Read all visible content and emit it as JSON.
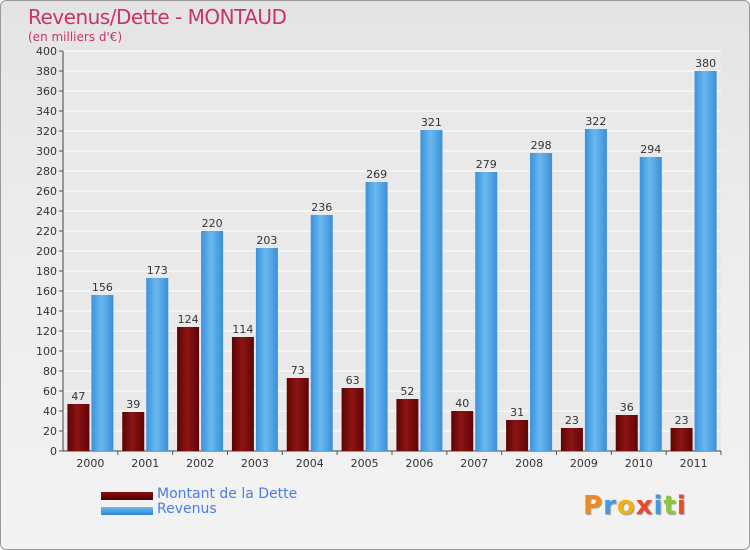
{
  "header": {
    "title": "Revenus/Dette - MONTAUD",
    "subtitle": "(en milliers d'€)"
  },
  "logo": {
    "text": "Proxiti"
  },
  "colors": {
    "dette": "#7a0a0a",
    "revenus": "#4aa3e6",
    "title": "#c8336a",
    "legend_text": "#4a7de6"
  },
  "legend": {
    "items": [
      {
        "label": "Montant de la Dette",
        "color": "#6a0606"
      },
      {
        "label": "Revenus",
        "color": "#3f9be3"
      }
    ]
  },
  "chart_data": {
    "type": "bar",
    "title": "Revenus/Dette - MONTAUD",
    "ylabel": "(en milliers d'€)",
    "xlabel": "",
    "categories": [
      "2000",
      "2001",
      "2002",
      "2003",
      "2004",
      "2005",
      "2006",
      "2007",
      "2008",
      "2009",
      "2010",
      "2011"
    ],
    "series": [
      {
        "name": "Montant de la Dette",
        "values": [
          47,
          39,
          124,
          114,
          73,
          63,
          52,
          40,
          31,
          23,
          36,
          23
        ]
      },
      {
        "name": "Revenus",
        "values": [
          156,
          173,
          220,
          203,
          236,
          269,
          321,
          279,
          298,
          322,
          294,
          380
        ]
      }
    ],
    "ylim": [
      0,
      400
    ],
    "ytick_step": 20,
    "grid": true,
    "legend_position": "bottom-left"
  }
}
